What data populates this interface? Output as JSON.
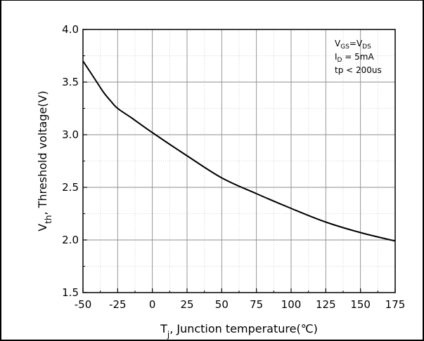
{
  "chart_data": {
    "type": "line",
    "title": "",
    "xlabel": {
      "main": "T",
      "sub": "j",
      "rest": ", Junction temperature(℃)"
    },
    "ylabel": {
      "main": "V",
      "sub": "th",
      "rest": ", Threshold voltage(V)"
    },
    "xlim": [
      -50,
      175
    ],
    "ylim": [
      1.5,
      4.0
    ],
    "xticks": [
      -50,
      -25,
      0,
      25,
      50,
      75,
      100,
      125,
      150,
      175
    ],
    "xtick_labels": [
      "-50",
      "-25",
      "0",
      "25",
      "50",
      "75",
      "100",
      "125",
      "150",
      "175"
    ],
    "yticks": [
      1.5,
      2.0,
      2.5,
      3.0,
      3.5,
      4.0
    ],
    "ytick_labels": [
      "1.5",
      "2.0",
      "2.5",
      "3.0",
      "3.5",
      "4.0"
    ],
    "grid": true,
    "series": [
      {
        "x": [
          -50,
          -45,
          -40,
          -35,
          -30,
          -25,
          -15,
          0,
          25,
          50,
          75,
          100,
          125,
          150,
          175
        ],
        "y": [
          3.7,
          3.6,
          3.5,
          3.4,
          3.32,
          3.25,
          3.16,
          3.02,
          2.8,
          2.59,
          2.44,
          2.3,
          2.17,
          2.07,
          1.99
        ]
      }
    ],
    "annotations": [
      {
        "parts": [
          [
            "V",
            ""
          ],
          [
            "GS",
            "sub"
          ],
          [
            "=V",
            ""
          ],
          [
            "DS",
            "sub"
          ]
        ]
      },
      {
        "parts": [
          [
            "I",
            ""
          ],
          [
            "D",
            "sub"
          ],
          [
            " = 5mA",
            ""
          ]
        ]
      },
      {
        "parts": [
          [
            "tp < 200us",
            ""
          ]
        ]
      }
    ]
  },
  "colors": {
    "line": "#000000",
    "grid": "#8c8c8c",
    "minor_grid": "#c8c8c8",
    "frame": "#000000"
  }
}
